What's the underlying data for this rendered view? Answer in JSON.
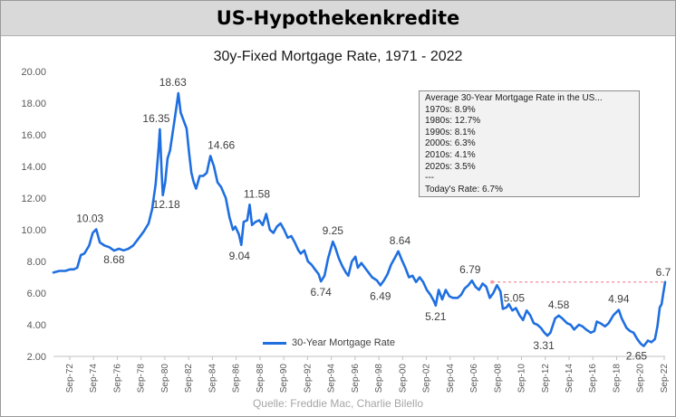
{
  "header": {
    "title": "US-Hypothekenkredite"
  },
  "source": "Quelle: Freddie Mac, Charlie Bilello",
  "colors": {
    "line": "#1f6fe0",
    "header_bg": "#d9d9d9",
    "dotted": "#f4a0a8"
  },
  "info_box": {
    "title": "Average 30-Year Mortgage Rate in the US...",
    "lines": [
      "1970s: 8.9%",
      "1980s: 12.7%",
      "1990s: 8.1%",
      "2000s: 6.3%",
      "2010s: 4.1%",
      "2020s: 3.5%",
      "---",
      "Today's Rate: 6.7%"
    ]
  },
  "chart_data": {
    "type": "line",
    "title": "30y-Fixed Mortgage Rate, 1971 - 2022",
    "xlabel": "",
    "ylabel": "",
    "ylim": [
      2,
      20
    ],
    "yticks": [
      "2.00",
      "4.00",
      "6.00",
      "8.00",
      "10.00",
      "12.00",
      "14.00",
      "16.00",
      "18.00",
      "20.00"
    ],
    "xlim": [
      1971.3,
      2022.75
    ],
    "xticks": [
      "Sep-72",
      "Sep-74",
      "Sep-76",
      "Sep-78",
      "Sep-80",
      "Sep-82",
      "Sep-84",
      "Sep-86",
      "Sep-88",
      "Sep-90",
      "Sep-92",
      "Sep-94",
      "Sep-96",
      "Sep-98",
      "Sep-00",
      "Sep-02",
      "Sep-04",
      "Sep-06",
      "Sep-08",
      "Sep-10",
      "Sep-12",
      "Sep-14",
      "Sep-16",
      "Sep-18",
      "Sep-20",
      "Sep-22"
    ],
    "legend": "30-Year Mortgage Rate",
    "series": [
      {
        "name": "30-Year Mortgage Rate",
        "points": [
          [
            1971.3,
            7.3
          ],
          [
            1971.8,
            7.4
          ],
          [
            1972.3,
            7.4
          ],
          [
            1972.7,
            7.5
          ],
          [
            1973.0,
            7.5
          ],
          [
            1973.3,
            7.6
          ],
          [
            1973.6,
            8.4
          ],
          [
            1973.9,
            8.5
          ],
          [
            1974.3,
            9.0
          ],
          [
            1974.6,
            9.8
          ],
          [
            1974.9,
            10.03
          ],
          [
            1975.2,
            9.2
          ],
          [
            1975.6,
            9.0
          ],
          [
            1976.0,
            8.9
          ],
          [
            1976.4,
            8.68
          ],
          [
            1976.8,
            8.8
          ],
          [
            1977.2,
            8.7
          ],
          [
            1977.6,
            8.8
          ],
          [
            1978.0,
            9.0
          ],
          [
            1978.5,
            9.5
          ],
          [
            1978.9,
            9.9
          ],
          [
            1979.3,
            10.4
          ],
          [
            1979.6,
            11.3
          ],
          [
            1979.9,
            12.9
          ],
          [
            1980.15,
            15.2
          ],
          [
            1980.25,
            16.35
          ],
          [
            1980.4,
            13.6
          ],
          [
            1980.5,
            12.18
          ],
          [
            1980.7,
            13.0
          ],
          [
            1980.9,
            14.5
          ],
          [
            1981.1,
            15.0
          ],
          [
            1981.4,
            16.5
          ],
          [
            1981.65,
            17.8
          ],
          [
            1981.8,
            18.63
          ],
          [
            1982.0,
            17.4
          ],
          [
            1982.2,
            17.0
          ],
          [
            1982.5,
            16.4
          ],
          [
            1982.7,
            14.9
          ],
          [
            1982.9,
            13.6
          ],
          [
            1983.1,
            13.0
          ],
          [
            1983.3,
            12.6
          ],
          [
            1983.6,
            13.4
          ],
          [
            1983.9,
            13.4
          ],
          [
            1984.2,
            13.6
          ],
          [
            1984.5,
            14.66
          ],
          [
            1984.8,
            14.0
          ],
          [
            1985.1,
            13.0
          ],
          [
            1985.4,
            12.7
          ],
          [
            1985.8,
            12.0
          ],
          [
            1986.1,
            10.8
          ],
          [
            1986.4,
            10.0
          ],
          [
            1986.6,
            10.2
          ],
          [
            1986.9,
            9.7
          ],
          [
            1987.1,
            9.04
          ],
          [
            1987.3,
            10.5
          ],
          [
            1987.6,
            10.6
          ],
          [
            1987.8,
            11.58
          ],
          [
            1988.0,
            10.3
          ],
          [
            1988.3,
            10.5
          ],
          [
            1988.6,
            10.6
          ],
          [
            1988.9,
            10.3
          ],
          [
            1989.2,
            11.0
          ],
          [
            1989.5,
            10.0
          ],
          [
            1989.8,
            9.8
          ],
          [
            1990.1,
            10.2
          ],
          [
            1990.4,
            10.4
          ],
          [
            1990.7,
            10.0
          ],
          [
            1991.0,
            9.5
          ],
          [
            1991.3,
            9.6
          ],
          [
            1991.6,
            9.2
          ],
          [
            1991.9,
            8.7
          ],
          [
            1992.1,
            8.5
          ],
          [
            1992.4,
            8.7
          ],
          [
            1992.7,
            8.0
          ],
          [
            1993.0,
            7.8
          ],
          [
            1993.3,
            7.5
          ],
          [
            1993.6,
            7.2
          ],
          [
            1993.8,
            6.74
          ],
          [
            1994.1,
            7.1
          ],
          [
            1994.4,
            8.2
          ],
          [
            1994.8,
            9.25
          ],
          [
            1995.0,
            8.9
          ],
          [
            1995.3,
            8.2
          ],
          [
            1995.6,
            7.7
          ],
          [
            1995.9,
            7.3
          ],
          [
            1996.1,
            7.1
          ],
          [
            1996.4,
            8.0
          ],
          [
            1996.7,
            8.3
          ],
          [
            1996.9,
            7.6
          ],
          [
            1997.2,
            7.9
          ],
          [
            1997.5,
            7.6
          ],
          [
            1997.8,
            7.3
          ],
          [
            1998.1,
            7.0
          ],
          [
            1998.5,
            6.8
          ],
          [
            1998.8,
            6.49
          ],
          [
            1999.1,
            6.8
          ],
          [
            1999.4,
            7.2
          ],
          [
            1999.7,
            7.8
          ],
          [
            2000.0,
            8.2
          ],
          [
            2000.3,
            8.64
          ],
          [
            2000.6,
            8.1
          ],
          [
            2000.9,
            7.6
          ],
          [
            2001.2,
            7.0
          ],
          [
            2001.5,
            7.1
          ],
          [
            2001.8,
            6.7
          ],
          [
            2002.1,
            7.0
          ],
          [
            2002.4,
            6.7
          ],
          [
            2002.7,
            6.2
          ],
          [
            2003.0,
            5.9
          ],
          [
            2003.3,
            5.5
          ],
          [
            2003.45,
            5.21
          ],
          [
            2003.7,
            6.2
          ],
          [
            2004.0,
            5.6
          ],
          [
            2004.3,
            6.2
          ],
          [
            2004.6,
            5.8
          ],
          [
            2004.9,
            5.7
          ],
          [
            2005.3,
            5.7
          ],
          [
            2005.6,
            5.9
          ],
          [
            2005.9,
            6.3
          ],
          [
            2006.2,
            6.5
          ],
          [
            2006.5,
            6.79
          ],
          [
            2006.8,
            6.4
          ],
          [
            2007.1,
            6.2
          ],
          [
            2007.4,
            6.6
          ],
          [
            2007.7,
            6.4
          ],
          [
            2008.0,
            5.7
          ],
          [
            2008.3,
            6.0
          ],
          [
            2008.6,
            6.5
          ],
          [
            2008.9,
            6.1
          ],
          [
            2009.1,
            5.0
          ],
          [
            2009.4,
            5.1
          ],
          [
            2009.6,
            5.3
          ],
          [
            2009.9,
            4.9
          ],
          [
            2010.2,
            5.05
          ],
          [
            2010.5,
            4.6
          ],
          [
            2010.8,
            4.3
          ],
          [
            2011.1,
            4.9
          ],
          [
            2011.4,
            4.6
          ],
          [
            2011.7,
            4.1
          ],
          [
            2012.0,
            4.0
          ],
          [
            2012.3,
            3.8
          ],
          [
            2012.6,
            3.5
          ],
          [
            2012.85,
            3.31
          ],
          [
            2013.1,
            3.5
          ],
          [
            2013.5,
            4.4
          ],
          [
            2013.8,
            4.58
          ],
          [
            2014.1,
            4.4
          ],
          [
            2014.5,
            4.1
          ],
          [
            2014.8,
            4.0
          ],
          [
            2015.1,
            3.7
          ],
          [
            2015.5,
            4.0
          ],
          [
            2015.8,
            3.9
          ],
          [
            2016.1,
            3.7
          ],
          [
            2016.5,
            3.5
          ],
          [
            2016.8,
            3.6
          ],
          [
            2017.0,
            4.2
          ],
          [
            2017.3,
            4.1
          ],
          [
            2017.7,
            3.9
          ],
          [
            2018.0,
            4.1
          ],
          [
            2018.4,
            4.6
          ],
          [
            2018.85,
            4.94
          ],
          [
            2019.1,
            4.4
          ],
          [
            2019.5,
            3.8
          ],
          [
            2019.8,
            3.6
          ],
          [
            2020.1,
            3.5
          ],
          [
            2020.4,
            3.1
          ],
          [
            2020.7,
            2.8
          ],
          [
            2020.95,
            2.65
          ],
          [
            2021.3,
            3.0
          ],
          [
            2021.6,
            2.9
          ],
          [
            2021.9,
            3.1
          ],
          [
            2022.1,
            3.9
          ],
          [
            2022.3,
            5.1
          ],
          [
            2022.45,
            5.3
          ],
          [
            2022.6,
            6.0
          ],
          [
            2022.75,
            6.7
          ]
        ]
      }
    ],
    "annotations": [
      {
        "x": 1974.9,
        "y": 10.03,
        "label": "10.03"
      },
      {
        "x": 1976.4,
        "y": 8.68,
        "label": "8.68"
      },
      {
        "x": 1980.25,
        "y": 16.35,
        "label": "16.35"
      },
      {
        "x": 1980.5,
        "y": 12.18,
        "label": "12.18"
      },
      {
        "x": 1981.8,
        "y": 18.63,
        "label": "18.63"
      },
      {
        "x": 1984.5,
        "y": 14.66,
        "label": "14.66"
      },
      {
        "x": 1987.1,
        "y": 9.04,
        "label": "9.04"
      },
      {
        "x": 1987.8,
        "y": 11.58,
        "label": "11.58"
      },
      {
        "x": 1993.8,
        "y": 6.74,
        "label": "6.74"
      },
      {
        "x": 1994.8,
        "y": 9.25,
        "label": "9.25"
      },
      {
        "x": 1998.8,
        "y": 6.49,
        "label": "6.49"
      },
      {
        "x": 2000.3,
        "y": 8.64,
        "label": "8.64"
      },
      {
        "x": 2003.45,
        "y": 5.21,
        "label": "5.21"
      },
      {
        "x": 2006.5,
        "y": 6.79,
        "label": "6.79"
      },
      {
        "x": 2010.2,
        "y": 5.05,
        "label": "5.05"
      },
      {
        "x": 2012.85,
        "y": 3.31,
        "label": "3.31"
      },
      {
        "x": 2013.8,
        "y": 4.58,
        "label": "4.58"
      },
      {
        "x": 2018.85,
        "y": 4.94,
        "label": "4.94"
      },
      {
        "x": 2020.95,
        "y": 2.65,
        "label": "2.65"
      },
      {
        "x": 2022.75,
        "y": 6.7,
        "label": "6.7"
      }
    ],
    "reference_line": {
      "y": 6.7,
      "from_x": 2008.2,
      "to_x": 2022.6
    }
  }
}
